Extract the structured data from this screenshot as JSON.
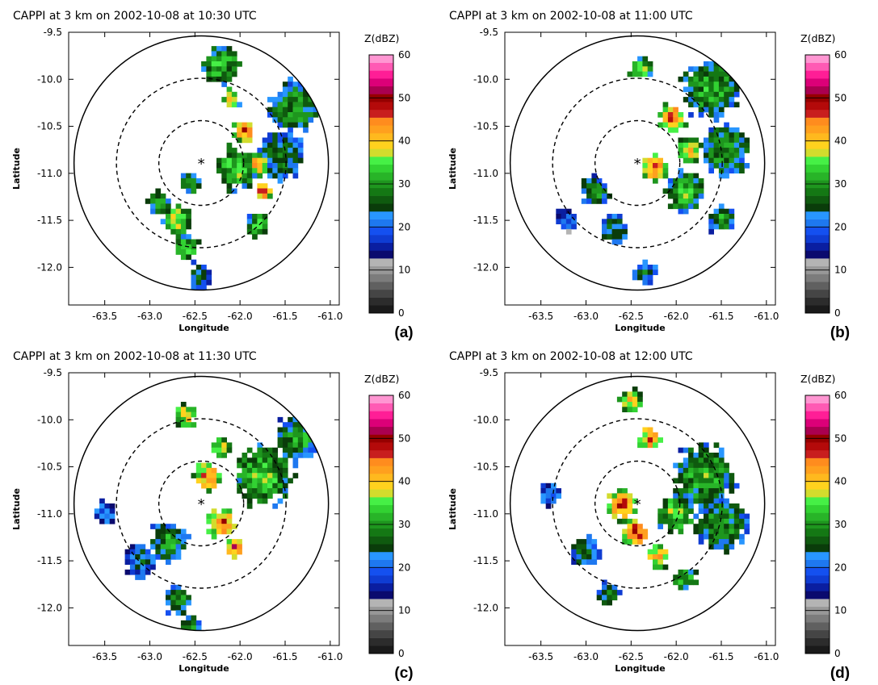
{
  "colors": {
    "scale": [
      "#1a1a1a",
      "#2c2c2c",
      "#454545",
      "#606060",
      "#7c7c7c",
      "#989898",
      "#b4b4b4",
      "#0a0a6e",
      "#0a1ea0",
      "#0f3cd2",
      "#1450f0",
      "#1e78f0",
      "#2896ff",
      "#0a3c0a",
      "#0f5a0f",
      "#147814",
      "#1e961e",
      "#28b428",
      "#32d232",
      "#46f046",
      "#d2dc2d",
      "#ffd21e",
      "#ffb91e",
      "#ffa01e",
      "#ff8c1e",
      "#c81e1e",
      "#b40a0a",
      "#960000",
      "#aa0050",
      "#dc0078",
      "#ff1e96",
      "#ff5ab4",
      "#ff96d2"
    ],
    "axis": "#000000"
  },
  "chart_data": [
    {
      "id": "a",
      "type": "heatmap",
      "title": "CAPPI at 3 km on 2002-10-08 at 10:30 UTC",
      "panel_label": "(a)",
      "xlabel": "Longitude",
      "ylabel": "Latitude",
      "xlim": [
        -63.9,
        -60.9
      ],
      "ylim": [
        -12.4,
        -9.5
      ],
      "xticks": [
        "-63.5",
        "-63.0",
        "-62.5",
        "-62.0",
        "-61.5",
        "-61.0"
      ],
      "xtick_values": [
        -63.5,
        -63.0,
        -62.5,
        -62.0,
        -61.5,
        -61.0
      ],
      "yticks": [
        "-9.5",
        "-10.0",
        "-10.5",
        "-11.0",
        "-11.5",
        "-12.0"
      ],
      "ytick_values": [
        -9.5,
        -10.0,
        -10.5,
        -11.0,
        -11.5,
        -12.0
      ],
      "radar_center": [
        -62.43,
        -10.89
      ],
      "colorbar": {
        "label": "Z(dBZ)",
        "ticks": [
          "0",
          "10",
          "20",
          "30",
          "40",
          "50",
          "60"
        ],
        "range": [
          0,
          60
        ]
      },
      "echoes": [
        {
          "lon": -61.95,
          "lat": -10.55,
          "dbz": 45,
          "size": 0.12
        },
        {
          "lon": -61.8,
          "lat": -10.9,
          "dbz": 44,
          "size": 0.12
        },
        {
          "lon": -61.75,
          "lat": -11.2,
          "dbz": 46,
          "size": 0.1
        },
        {
          "lon": -62.1,
          "lat": -10.2,
          "dbz": 42,
          "size": 0.1
        },
        {
          "lon": -61.4,
          "lat": -10.3,
          "dbz": 30,
          "size": 0.28
        },
        {
          "lon": -61.55,
          "lat": -10.8,
          "dbz": 28,
          "size": 0.25
        },
        {
          "lon": -62.05,
          "lat": -10.95,
          "dbz": 35,
          "size": 0.22
        },
        {
          "lon": -62.2,
          "lat": -9.85,
          "dbz": 33,
          "size": 0.2
        },
        {
          "lon": -62.7,
          "lat": -11.5,
          "dbz": 38,
          "size": 0.15
        },
        {
          "lon": -62.6,
          "lat": -11.8,
          "dbz": 34,
          "size": 0.14
        },
        {
          "lon": -62.45,
          "lat": -12.1,
          "dbz": 26,
          "size": 0.14
        },
        {
          "lon": -62.9,
          "lat": -11.3,
          "dbz": 30,
          "size": 0.12
        },
        {
          "lon": -62.55,
          "lat": -11.1,
          "dbz": 32,
          "size": 0.12
        },
        {
          "lon": -61.8,
          "lat": -11.55,
          "dbz": 32,
          "size": 0.14
        }
      ]
    },
    {
      "id": "b",
      "type": "heatmap",
      "title": "CAPPI at 3 km on 2002-10-08 at 11:00 UTC",
      "panel_label": "(b)",
      "xlabel": "Longitude",
      "ylabel": "Latitude",
      "xlim": [
        -63.9,
        -60.9
      ],
      "ylim": [
        -12.4,
        -9.5
      ],
      "xticks": [
        "-63.5",
        "-63.0",
        "-62.5",
        "-62.0",
        "-61.5",
        "-61.0"
      ],
      "xtick_values": [
        -63.5,
        -63.0,
        -62.5,
        -62.0,
        -61.5,
        -61.0
      ],
      "yticks": [
        "-9.5",
        "-10.0",
        "-10.5",
        "-11.0",
        "-11.5",
        "-12.0"
      ],
      "ytick_values": [
        -9.5,
        -10.0,
        -10.5,
        -11.0,
        -11.5,
        -12.0
      ],
      "radar_center": [
        -62.43,
        -10.89
      ],
      "colorbar": {
        "label": "Z(dBZ)",
        "ticks": [
          "0",
          "10",
          "20",
          "30",
          "40",
          "50",
          "60"
        ],
        "range": [
          0,
          60
        ]
      },
      "echoes": [
        {
          "lon": -62.05,
          "lat": -10.4,
          "dbz": 45,
          "size": 0.15
        },
        {
          "lon": -62.25,
          "lat": -10.95,
          "dbz": 46,
          "size": 0.14
        },
        {
          "lon": -61.85,
          "lat": -10.75,
          "dbz": 40,
          "size": 0.14
        },
        {
          "lon": -61.6,
          "lat": -10.1,
          "dbz": 32,
          "size": 0.3
        },
        {
          "lon": -61.45,
          "lat": -10.75,
          "dbz": 30,
          "size": 0.28
        },
        {
          "lon": -61.9,
          "lat": -11.2,
          "dbz": 34,
          "size": 0.2
        },
        {
          "lon": -62.4,
          "lat": -9.9,
          "dbz": 36,
          "size": 0.12
        },
        {
          "lon": -62.9,
          "lat": -11.2,
          "dbz": 30,
          "size": 0.15
        },
        {
          "lon": -62.7,
          "lat": -11.6,
          "dbz": 28,
          "size": 0.15
        },
        {
          "lon": -62.35,
          "lat": -12.05,
          "dbz": 27,
          "size": 0.12
        },
        {
          "lon": -63.2,
          "lat": -11.5,
          "dbz": 22,
          "size": 0.12
        },
        {
          "lon": -61.5,
          "lat": -11.5,
          "dbz": 30,
          "size": 0.14
        }
      ]
    },
    {
      "id": "c",
      "type": "heatmap",
      "title": "CAPPI at 3 km on 2002-10-08 at 11:30 UTC",
      "panel_label": "(c)",
      "xlabel": "Longitude",
      "ylabel": "Latitude",
      "xlim": [
        -63.9,
        -60.9
      ],
      "ylim": [
        -12.4,
        -9.5
      ],
      "xticks": [
        "-63.5",
        "-63.0",
        "-62.5",
        "-62.0",
        "-61.5",
        "-61.0"
      ],
      "xtick_values": [
        -63.5,
        -63.0,
        -62.5,
        -62.0,
        -61.5,
        -61.0
      ],
      "yticks": [
        "-9.5",
        "-10.0",
        "-10.5",
        "-11.0",
        "-11.5",
        "-12.0"
      ],
      "ytick_values": [
        -9.5,
        -10.0,
        -10.5,
        -11.0,
        -11.5,
        -12.0
      ],
      "radar_center": [
        -62.43,
        -10.89
      ],
      "colorbar": {
        "label": "Z(dBZ)",
        "ticks": [
          "0",
          "10",
          "20",
          "30",
          "40",
          "50",
          "60"
        ],
        "range": [
          0,
          60
        ]
      },
      "echoes": [
        {
          "lon": -62.35,
          "lat": -10.6,
          "dbz": 45,
          "size": 0.15
        },
        {
          "lon": -62.2,
          "lat": -11.1,
          "dbz": 46,
          "size": 0.15
        },
        {
          "lon": -62.05,
          "lat": -11.35,
          "dbz": 48,
          "size": 0.1
        },
        {
          "lon": -62.6,
          "lat": -9.95,
          "dbz": 40,
          "size": 0.12
        },
        {
          "lon": -61.75,
          "lat": -10.6,
          "dbz": 34,
          "size": 0.3
        },
        {
          "lon": -61.35,
          "lat": -10.2,
          "dbz": 30,
          "size": 0.25
        },
        {
          "lon": -62.8,
          "lat": -11.3,
          "dbz": 30,
          "size": 0.2
        },
        {
          "lon": -63.1,
          "lat": -11.5,
          "dbz": 24,
          "size": 0.18
        },
        {
          "lon": -62.7,
          "lat": -11.9,
          "dbz": 30,
          "size": 0.15
        },
        {
          "lon": -62.55,
          "lat": -12.2,
          "dbz": 28,
          "size": 0.12
        },
        {
          "lon": -62.2,
          "lat": -10.3,
          "dbz": 38,
          "size": 0.12
        },
        {
          "lon": -63.5,
          "lat": -11.0,
          "dbz": 22,
          "size": 0.12
        }
      ]
    },
    {
      "id": "d",
      "type": "heatmap",
      "title": "CAPPI at 3 km on 2002-10-08 at 12:00 UTC",
      "panel_label": "(d)",
      "xlabel": "Longitude",
      "ylabel": "Latitude",
      "xlim": [
        -63.9,
        -60.9
      ],
      "ylim": [
        -12.4,
        -9.5
      ],
      "xticks": [
        "-63.5",
        "-63.0",
        "-62.5",
        "-62.0",
        "-61.5",
        "-61.0"
      ],
      "xtick_values": [
        -63.5,
        -63.0,
        -62.5,
        -62.0,
        -61.5,
        -61.0
      ],
      "yticks": [
        "-9.5",
        "-10.0",
        "-10.5",
        "-11.0",
        "-11.5",
        "-12.0"
      ],
      "ytick_values": [
        -9.5,
        -10.0,
        -10.5,
        -11.0,
        -11.5,
        -12.0
      ],
      "radar_center": [
        -62.43,
        -10.89
      ],
      "colorbar": {
        "label": "Z(dBZ)",
        "ticks": [
          "0",
          "10",
          "20",
          "30",
          "40",
          "50",
          "60"
        ],
        "range": [
          0,
          60
        ]
      },
      "echoes": [
        {
          "lon": -62.6,
          "lat": -10.9,
          "dbz": 46,
          "size": 0.16
        },
        {
          "lon": -62.45,
          "lat": -11.2,
          "dbz": 48,
          "size": 0.14
        },
        {
          "lon": -62.3,
          "lat": -10.2,
          "dbz": 45,
          "size": 0.12
        },
        {
          "lon": -62.5,
          "lat": -9.8,
          "dbz": 40,
          "size": 0.12
        },
        {
          "lon": -61.7,
          "lat": -10.6,
          "dbz": 32,
          "size": 0.32
        },
        {
          "lon": -61.5,
          "lat": -11.1,
          "dbz": 30,
          "size": 0.28
        },
        {
          "lon": -62.0,
          "lat": -11.0,
          "dbz": 36,
          "size": 0.2
        },
        {
          "lon": -62.2,
          "lat": -11.45,
          "dbz": 44,
          "size": 0.12
        },
        {
          "lon": -63.0,
          "lat": -11.4,
          "dbz": 28,
          "size": 0.15
        },
        {
          "lon": -62.75,
          "lat": -11.85,
          "dbz": 30,
          "size": 0.12
        },
        {
          "lon": -63.4,
          "lat": -10.8,
          "dbz": 24,
          "size": 0.12
        },
        {
          "lon": -61.9,
          "lat": -11.7,
          "dbz": 34,
          "size": 0.12
        }
      ]
    }
  ]
}
